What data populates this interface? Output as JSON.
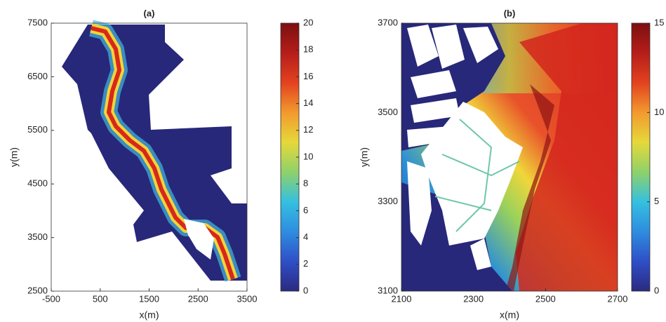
{
  "chart_data": [
    {
      "type": "heatmap",
      "title": "(a)",
      "xlabel": "x(m)",
      "ylabel": "y(m)",
      "xlim": [
        -500,
        3500
      ],
      "xticks": [
        -500,
        500,
        1500,
        2500,
        3500
      ],
      "ylim": [
        2500,
        7500
      ],
      "yticks": [
        2500,
        3500,
        4500,
        5500,
        6500,
        7500
      ],
      "colormap": "jet",
      "colorbar": {
        "lim": [
          0,
          20
        ],
        "ticks": [
          0,
          2,
          4,
          6,
          8,
          10,
          12,
          14,
          16,
          18,
          20
        ]
      }
    },
    {
      "type": "heatmap",
      "title": "(b)",
      "xlabel": "x(m)",
      "ylabel": "y(m)",
      "xlim": [
        2100,
        2700
      ],
      "xticks": [
        2100,
        2300,
        2500,
        2700
      ],
      "ylim": [
        3100,
        3700
      ],
      "yticks": [
        3100,
        3300,
        3500,
        3700
      ],
      "colormap": "jet",
      "colorbar": {
        "lim": [
          0,
          15
        ],
        "ticks": [
          0,
          5,
          10,
          15
        ]
      }
    }
  ]
}
